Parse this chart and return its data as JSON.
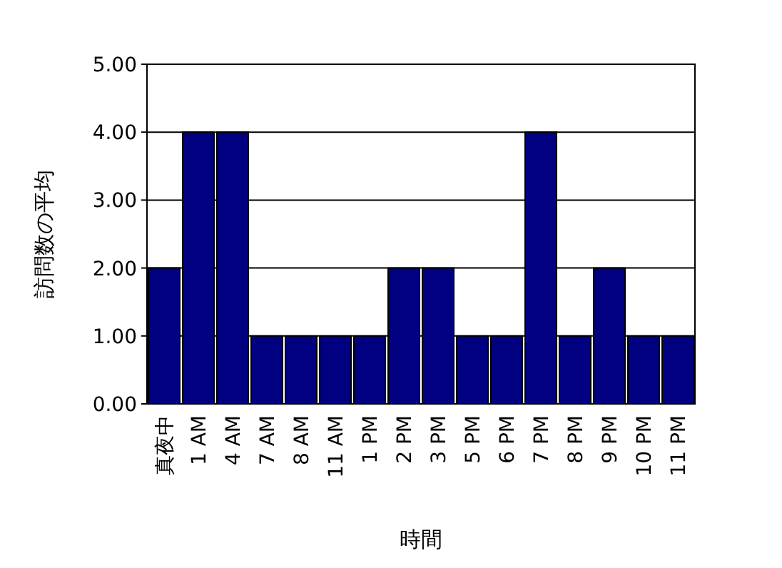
{
  "chart_data": {
    "type": "bar",
    "xlabel": "時間",
    "ylabel": "訪問数の平均",
    "categories": [
      "真夜中",
      "1 AM",
      "4 AM",
      "7 AM",
      "8 AM",
      "11 AM",
      "1 PM",
      "2 PM",
      "3 PM",
      "5 PM",
      "6 PM",
      "7 PM",
      "8 PM",
      "9 PM",
      "10 PM",
      "11 PM"
    ],
    "values": [
      2,
      4,
      4,
      1,
      1,
      1,
      1,
      2,
      2,
      1,
      1,
      4,
      1,
      2,
      1,
      1
    ],
    "color": "#000080",
    "ylim": [
      0,
      5
    ],
    "yticks": [
      {
        "value": 0,
        "label": "0.00"
      },
      {
        "value": 1,
        "label": "1.00"
      },
      {
        "value": 2,
        "label": "2.00"
      },
      {
        "value": 3,
        "label": "3.00"
      },
      {
        "value": 4,
        "label": "4.00"
      },
      {
        "value": 5,
        "label": "5.00"
      }
    ],
    "grid": "y"
  }
}
